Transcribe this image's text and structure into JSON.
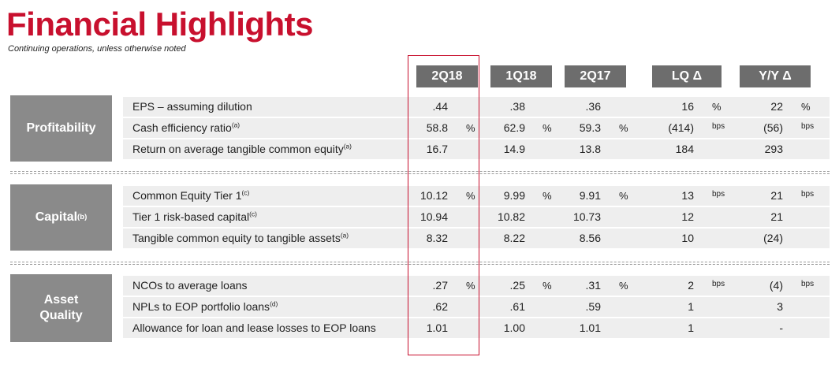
{
  "title": "Financial Highlights",
  "subtitle": "Continuing operations, unless otherwise noted",
  "columns": [
    "2Q18",
    "1Q18",
    "2Q17",
    "LQ Δ",
    "Y/Y Δ"
  ],
  "sections": [
    {
      "label": "Profitability",
      "label_sup": "",
      "rows": [
        {
          "label": "EPS – assuming dilution",
          "sup": "",
          "v2q18": ".44",
          "u2q18": "",
          "v1q18": ".38",
          "u1q18": "",
          "v2q17": ".36",
          "u2q17": "",
          "lq": "16",
          "lqu": "%",
          "yy": "22",
          "yyu": "%"
        },
        {
          "label": "Cash efficiency ratio",
          "sup": "(a)",
          "v2q18": "58.8",
          "u2q18": "%",
          "v1q18": "62.9",
          "u1q18": "%",
          "v2q17": "59.3",
          "u2q17": "%",
          "lq": "(414)",
          "lqu": "bps",
          "yy": "(56)",
          "yyu": "bps"
        },
        {
          "label": "Return on average tangible common equity",
          "sup": "(a)",
          "v2q18": "16.7",
          "u2q18": "",
          "v1q18": "14.9",
          "u1q18": "",
          "v2q17": "13.8",
          "u2q17": "",
          "lq": "184",
          "lqu": "",
          "yy": "293",
          "yyu": ""
        }
      ]
    },
    {
      "label": "Capital",
      "label_sup": "(b)",
      "rows": [
        {
          "label": "Common Equity Tier 1",
          "sup": "(c)",
          "v2q18": "10.12",
          "u2q18": "%",
          "v1q18": "9.99",
          "u1q18": "%",
          "v2q17": "9.91",
          "u2q17": "%",
          "lq": "13",
          "lqu": "bps",
          "yy": "21",
          "yyu": "bps"
        },
        {
          "label": "Tier 1 risk-based capital",
          "sup": "(c)",
          "v2q18": "10.94",
          "u2q18": "",
          "v1q18": "10.82",
          "u1q18": "",
          "v2q17": "10.73",
          "u2q17": "",
          "lq": "12",
          "lqu": "",
          "yy": "21",
          "yyu": ""
        },
        {
          "label": "Tangible common equity to tangible assets",
          "sup": "(a)",
          "v2q18": "8.32",
          "u2q18": "",
          "v1q18": "8.22",
          "u1q18": "",
          "v2q17": "8.56",
          "u2q17": "",
          "lq": "10",
          "lqu": "",
          "yy": "(24)",
          "yyu": ""
        }
      ]
    },
    {
      "label": "Asset\nQuality",
      "label_sup": "",
      "rows": [
        {
          "label": "NCOs to average loans",
          "sup": "",
          "v2q18": ".27",
          "u2q18": "%",
          "v1q18": ".25",
          "u1q18": "%",
          "v2q17": ".31",
          "u2q17": "%",
          "lq": "2",
          "lqu": "bps",
          "yy": "(4)",
          "yyu": "bps"
        },
        {
          "label": "NPLs to EOP portfolio loans",
          "sup": "(d)",
          "v2q18": ".62",
          "u2q18": "",
          "v1q18": ".61",
          "u1q18": "",
          "v2q17": ".59",
          "u2q17": "",
          "lq": "1",
          "lqu": "",
          "yy": "3",
          "yyu": ""
        },
        {
          "label": "Allowance for loan and lease losses to EOP loans",
          "sup": "",
          "v2q18": "1.01",
          "u2q18": "",
          "v1q18": "1.00",
          "u1q18": "",
          "v2q17": "1.01",
          "u2q17": "",
          "lq": "1",
          "lqu": "",
          "yy": "-",
          "yyu": ""
        }
      ]
    }
  ],
  "colors": {
    "title": "#c8102e",
    "header_bg": "#6d6d6d",
    "section_bg": "#8a8a8a",
    "row_bg": "#eeeeee",
    "highlight": "#c8102e"
  }
}
